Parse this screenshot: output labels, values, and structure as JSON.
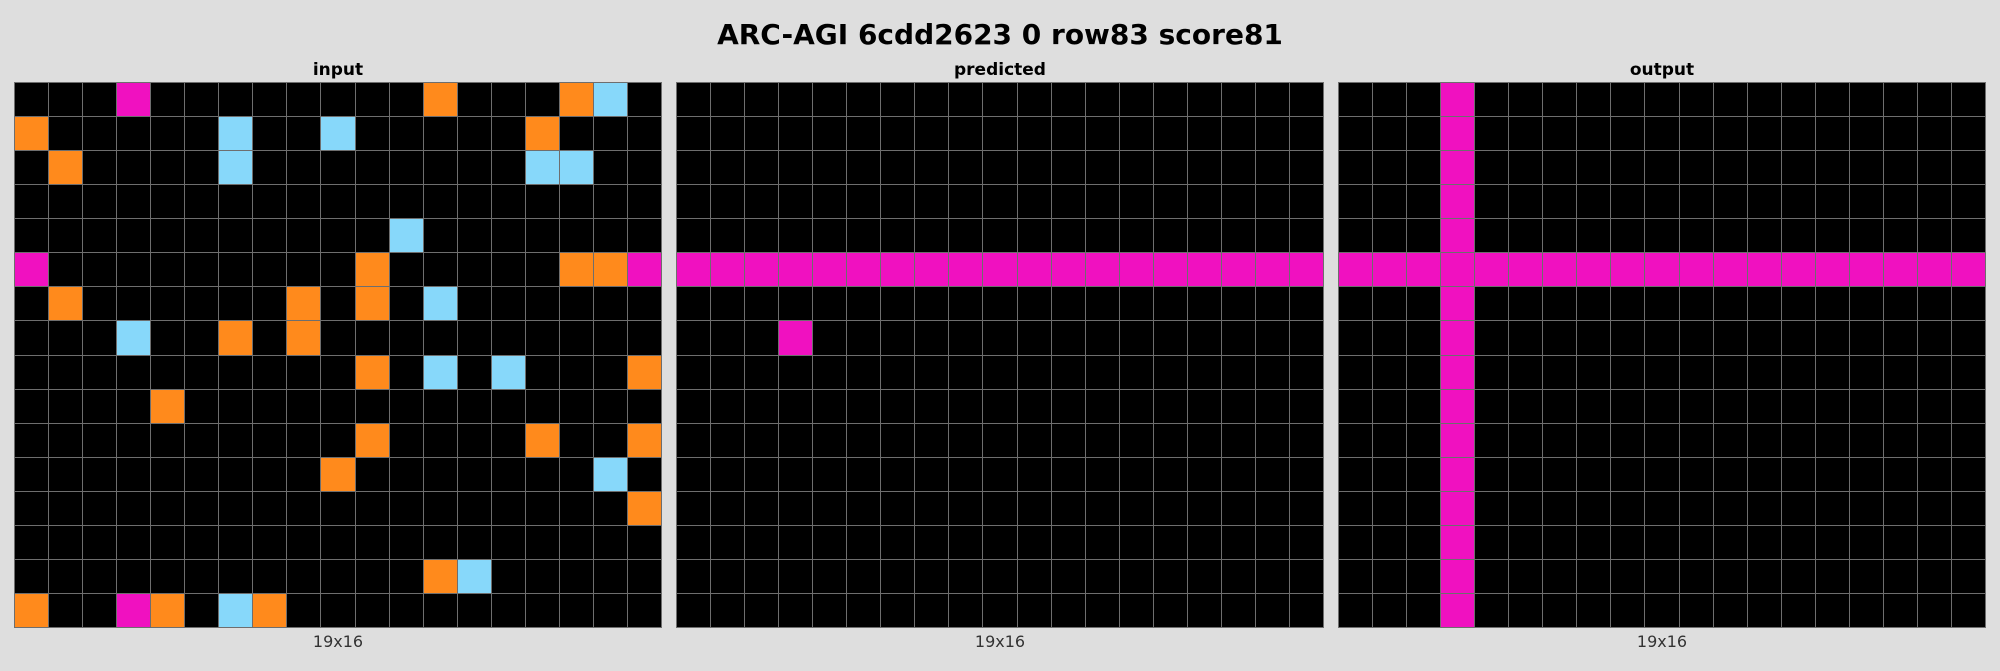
{
  "title": "ARC-AGI 6cdd2623 0 row83 score81",
  "palette": {
    "0": "#000000",
    "6": "#f011c0",
    "7": "#ff8a1c",
    "8": "#87d8fa"
  },
  "panels": [
    {
      "label": "input",
      "dims": "19x16",
      "grid": [
        [
          0,
          0,
          0,
          6,
          0,
          0,
          0,
          0,
          0,
          0,
          0,
          0,
          7,
          0,
          0,
          0,
          7,
          8,
          0
        ],
        [
          7,
          0,
          0,
          0,
          0,
          0,
          8,
          0,
          0,
          8,
          0,
          0,
          0,
          0,
          0,
          7,
          0,
          0,
          0
        ],
        [
          0,
          7,
          0,
          0,
          0,
          0,
          8,
          0,
          0,
          0,
          0,
          0,
          0,
          0,
          0,
          8,
          8,
          0,
          0
        ],
        [
          0,
          0,
          0,
          0,
          0,
          0,
          0,
          0,
          0,
          0,
          0,
          0,
          0,
          0,
          0,
          0,
          0,
          0,
          0
        ],
        [
          0,
          0,
          0,
          0,
          0,
          0,
          0,
          0,
          0,
          0,
          0,
          8,
          0,
          0,
          0,
          0,
          0,
          0,
          0
        ],
        [
          6,
          0,
          0,
          0,
          0,
          0,
          0,
          0,
          0,
          0,
          7,
          0,
          0,
          0,
          0,
          0,
          7,
          7,
          6
        ],
        [
          0,
          7,
          0,
          0,
          0,
          0,
          0,
          0,
          7,
          0,
          7,
          0,
          8,
          0,
          0,
          0,
          0,
          0,
          0
        ],
        [
          0,
          0,
          0,
          8,
          0,
          0,
          7,
          0,
          7,
          0,
          0,
          0,
          0,
          0,
          0,
          0,
          0,
          0,
          0
        ],
        [
          0,
          0,
          0,
          0,
          0,
          0,
          0,
          0,
          0,
          0,
          7,
          0,
          8,
          0,
          8,
          0,
          0,
          0,
          7
        ],
        [
          0,
          0,
          0,
          0,
          7,
          0,
          0,
          0,
          0,
          0,
          0,
          0,
          0,
          0,
          0,
          0,
          0,
          0,
          0
        ],
        [
          0,
          0,
          0,
          0,
          0,
          0,
          0,
          0,
          0,
          0,
          7,
          0,
          0,
          0,
          0,
          7,
          0,
          0,
          7
        ],
        [
          0,
          0,
          0,
          0,
          0,
          0,
          0,
          0,
          0,
          7,
          0,
          0,
          0,
          0,
          0,
          0,
          0,
          8,
          0
        ],
        [
          0,
          0,
          0,
          0,
          0,
          0,
          0,
          0,
          0,
          0,
          0,
          0,
          0,
          0,
          0,
          0,
          0,
          0,
          7
        ],
        [
          0,
          0,
          0,
          0,
          0,
          0,
          0,
          0,
          0,
          0,
          0,
          0,
          0,
          0,
          0,
          0,
          0,
          0,
          0
        ],
        [
          0,
          0,
          0,
          0,
          0,
          0,
          0,
          0,
          0,
          0,
          0,
          0,
          7,
          8,
          0,
          0,
          0,
          0,
          0
        ],
        [
          7,
          0,
          0,
          6,
          7,
          0,
          8,
          7,
          0,
          0,
          0,
          0,
          0,
          0,
          0,
          0,
          0,
          0,
          0
        ]
      ]
    },
    {
      "label": "predicted",
      "dims": "19x16",
      "grid": [
        [
          0,
          0,
          0,
          0,
          0,
          0,
          0,
          0,
          0,
          0,
          0,
          0,
          0,
          0,
          0,
          0,
          0,
          0,
          0
        ],
        [
          0,
          0,
          0,
          0,
          0,
          0,
          0,
          0,
          0,
          0,
          0,
          0,
          0,
          0,
          0,
          0,
          0,
          0,
          0
        ],
        [
          0,
          0,
          0,
          0,
          0,
          0,
          0,
          0,
          0,
          0,
          0,
          0,
          0,
          0,
          0,
          0,
          0,
          0,
          0
        ],
        [
          0,
          0,
          0,
          0,
          0,
          0,
          0,
          0,
          0,
          0,
          0,
          0,
          0,
          0,
          0,
          0,
          0,
          0,
          0
        ],
        [
          0,
          0,
          0,
          0,
          0,
          0,
          0,
          0,
          0,
          0,
          0,
          0,
          0,
          0,
          0,
          0,
          0,
          0,
          0
        ],
        [
          6,
          6,
          6,
          6,
          6,
          6,
          6,
          6,
          6,
          6,
          6,
          6,
          6,
          6,
          6,
          6,
          6,
          6,
          6
        ],
        [
          0,
          0,
          0,
          0,
          0,
          0,
          0,
          0,
          0,
          0,
          0,
          0,
          0,
          0,
          0,
          0,
          0,
          0,
          0
        ],
        [
          0,
          0,
          0,
          6,
          0,
          0,
          0,
          0,
          0,
          0,
          0,
          0,
          0,
          0,
          0,
          0,
          0,
          0,
          0
        ],
        [
          0,
          0,
          0,
          0,
          0,
          0,
          0,
          0,
          0,
          0,
          0,
          0,
          0,
          0,
          0,
          0,
          0,
          0,
          0
        ],
        [
          0,
          0,
          0,
          0,
          0,
          0,
          0,
          0,
          0,
          0,
          0,
          0,
          0,
          0,
          0,
          0,
          0,
          0,
          0
        ],
        [
          0,
          0,
          0,
          0,
          0,
          0,
          0,
          0,
          0,
          0,
          0,
          0,
          0,
          0,
          0,
          0,
          0,
          0,
          0
        ],
        [
          0,
          0,
          0,
          0,
          0,
          0,
          0,
          0,
          0,
          0,
          0,
          0,
          0,
          0,
          0,
          0,
          0,
          0,
          0
        ],
        [
          0,
          0,
          0,
          0,
          0,
          0,
          0,
          0,
          0,
          0,
          0,
          0,
          0,
          0,
          0,
          0,
          0,
          0,
          0
        ],
        [
          0,
          0,
          0,
          0,
          0,
          0,
          0,
          0,
          0,
          0,
          0,
          0,
          0,
          0,
          0,
          0,
          0,
          0,
          0
        ],
        [
          0,
          0,
          0,
          0,
          0,
          0,
          0,
          0,
          0,
          0,
          0,
          0,
          0,
          0,
          0,
          0,
          0,
          0,
          0
        ],
        [
          0,
          0,
          0,
          0,
          0,
          0,
          0,
          0,
          0,
          0,
          0,
          0,
          0,
          0,
          0,
          0,
          0,
          0,
          0
        ]
      ]
    },
    {
      "label": "output",
      "dims": "19x16",
      "grid": [
        [
          0,
          0,
          0,
          6,
          0,
          0,
          0,
          0,
          0,
          0,
          0,
          0,
          0,
          0,
          0,
          0,
          0,
          0,
          0
        ],
        [
          0,
          0,
          0,
          6,
          0,
          0,
          0,
          0,
          0,
          0,
          0,
          0,
          0,
          0,
          0,
          0,
          0,
          0,
          0
        ],
        [
          0,
          0,
          0,
          6,
          0,
          0,
          0,
          0,
          0,
          0,
          0,
          0,
          0,
          0,
          0,
          0,
          0,
          0,
          0
        ],
        [
          0,
          0,
          0,
          6,
          0,
          0,
          0,
          0,
          0,
          0,
          0,
          0,
          0,
          0,
          0,
          0,
          0,
          0,
          0
        ],
        [
          0,
          0,
          0,
          6,
          0,
          0,
          0,
          0,
          0,
          0,
          0,
          0,
          0,
          0,
          0,
          0,
          0,
          0,
          0
        ],
        [
          6,
          6,
          6,
          6,
          6,
          6,
          6,
          6,
          6,
          6,
          6,
          6,
          6,
          6,
          6,
          6,
          6,
          6,
          6
        ],
        [
          0,
          0,
          0,
          6,
          0,
          0,
          0,
          0,
          0,
          0,
          0,
          0,
          0,
          0,
          0,
          0,
          0,
          0,
          0
        ],
        [
          0,
          0,
          0,
          6,
          0,
          0,
          0,
          0,
          0,
          0,
          0,
          0,
          0,
          0,
          0,
          0,
          0,
          0,
          0
        ],
        [
          0,
          0,
          0,
          6,
          0,
          0,
          0,
          0,
          0,
          0,
          0,
          0,
          0,
          0,
          0,
          0,
          0,
          0,
          0
        ],
        [
          0,
          0,
          0,
          6,
          0,
          0,
          0,
          0,
          0,
          0,
          0,
          0,
          0,
          0,
          0,
          0,
          0,
          0,
          0
        ],
        [
          0,
          0,
          0,
          6,
          0,
          0,
          0,
          0,
          0,
          0,
          0,
          0,
          0,
          0,
          0,
          0,
          0,
          0,
          0
        ],
        [
          0,
          0,
          0,
          6,
          0,
          0,
          0,
          0,
          0,
          0,
          0,
          0,
          0,
          0,
          0,
          0,
          0,
          0,
          0
        ],
        [
          0,
          0,
          0,
          6,
          0,
          0,
          0,
          0,
          0,
          0,
          0,
          0,
          0,
          0,
          0,
          0,
          0,
          0,
          0
        ],
        [
          0,
          0,
          0,
          6,
          0,
          0,
          0,
          0,
          0,
          0,
          0,
          0,
          0,
          0,
          0,
          0,
          0,
          0,
          0
        ],
        [
          0,
          0,
          0,
          6,
          0,
          0,
          0,
          0,
          0,
          0,
          0,
          0,
          0,
          0,
          0,
          0,
          0,
          0,
          0
        ],
        [
          0,
          0,
          0,
          6,
          0,
          0,
          0,
          0,
          0,
          0,
          0,
          0,
          0,
          0,
          0,
          0,
          0,
          0,
          0
        ]
      ]
    }
  ]
}
